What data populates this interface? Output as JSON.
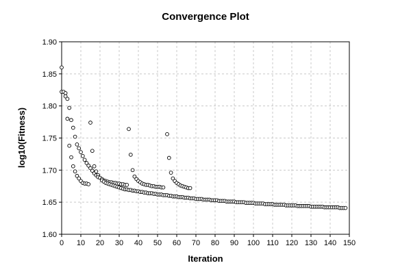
{
  "chart_data": {
    "type": "scatter",
    "title": "Convergence Plot",
    "xlabel": "Iteration",
    "ylabel": "log10(Fitness)",
    "xlim": [
      0,
      150
    ],
    "ylim": [
      1.6,
      1.9
    ],
    "xticks": [
      0,
      10,
      20,
      30,
      40,
      50,
      60,
      70,
      80,
      90,
      100,
      110,
      120,
      130,
      140,
      150
    ],
    "yticks": [
      1.6,
      1.65,
      1.7,
      1.75,
      1.8,
      1.85,
      1.9
    ],
    "ytick_labels": [
      "1.60",
      "1.65",
      "1.70",
      "1.75",
      "1.80",
      "1.85",
      "1.90"
    ],
    "grid": true,
    "marker": "open-circle",
    "points": [
      [
        0,
        1.86
      ],
      [
        0,
        1.822
      ],
      [
        1,
        1.822
      ],
      [
        2,
        1.82
      ],
      [
        2,
        1.815
      ],
      [
        3,
        1.811
      ],
      [
        3,
        1.78
      ],
      [
        4,
        1.797
      ],
      [
        4,
        1.738
      ],
      [
        5,
        1.778
      ],
      [
        5,
        1.72
      ],
      [
        6,
        1.766
      ],
      [
        6,
        1.706
      ],
      [
        7,
        1.752
      ],
      [
        7,
        1.698
      ],
      [
        8,
        1.74
      ],
      [
        8,
        1.691
      ],
      [
        9,
        1.734
      ],
      [
        9,
        1.687
      ],
      [
        10,
        1.728
      ],
      [
        10,
        1.683
      ],
      [
        11,
        1.722
      ],
      [
        11,
        1.68
      ],
      [
        12,
        1.716
      ],
      [
        12,
        1.679
      ],
      [
        13,
        1.711
      ],
      [
        13,
        1.679
      ],
      [
        14,
        1.707
      ],
      [
        14,
        1.678
      ],
      [
        15,
        1.774
      ],
      [
        15,
        1.703
      ],
      [
        16,
        1.73
      ],
      [
        16,
        1.699
      ],
      [
        17,
        1.706
      ],
      [
        17,
        1.695
      ],
      [
        18,
        1.698
      ],
      [
        18,
        1.692
      ],
      [
        19,
        1.692
      ],
      [
        19,
        1.689
      ],
      [
        20,
        1.688
      ],
      [
        21,
        1.686
      ],
      [
        22,
        1.684
      ],
      [
        23,
        1.683
      ],
      [
        24,
        1.682
      ],
      [
        25,
        1.681
      ],
      [
        26,
        1.681
      ],
      [
        27,
        1.68
      ],
      [
        28,
        1.68
      ],
      [
        29,
        1.679
      ],
      [
        30,
        1.679
      ],
      [
        31,
        1.678
      ],
      [
        32,
        1.678
      ],
      [
        33,
        1.677
      ],
      [
        34,
        1.677
      ],
      [
        35,
        1.764
      ],
      [
        36,
        1.724
      ],
      [
        37,
        1.7
      ],
      [
        38,
        1.69
      ],
      [
        39,
        1.686
      ],
      [
        40,
        1.683
      ],
      [
        41,
        1.681
      ],
      [
        42,
        1.679
      ],
      [
        43,
        1.678
      ],
      [
        44,
        1.677
      ],
      [
        45,
        1.677
      ],
      [
        46,
        1.676
      ],
      [
        47,
        1.675
      ],
      [
        48,
        1.675
      ],
      [
        49,
        1.674
      ],
      [
        50,
        1.674
      ],
      [
        51,
        1.674
      ],
      [
        52,
        1.673
      ],
      [
        53,
        1.673
      ],
      [
        55,
        1.756
      ],
      [
        56,
        1.719
      ],
      [
        57,
        1.696
      ],
      [
        58,
        1.687
      ],
      [
        59,
        1.683
      ],
      [
        60,
        1.68
      ],
      [
        61,
        1.678
      ],
      [
        62,
        1.676
      ],
      [
        63,
        1.675
      ],
      [
        64,
        1.674
      ],
      [
        65,
        1.673
      ],
      [
        66,
        1.672
      ],
      [
        67,
        1.672
      ],
      [
        21,
        1.684
      ],
      [
        22,
        1.682
      ],
      [
        23,
        1.68
      ],
      [
        24,
        1.679
      ],
      [
        25,
        1.678
      ],
      [
        26,
        1.677
      ],
      [
        27,
        1.676
      ],
      [
        28,
        1.675
      ],
      [
        29,
        1.674
      ],
      [
        30,
        1.673
      ],
      [
        31,
        1.672
      ],
      [
        32,
        1.671
      ],
      [
        33,
        1.67
      ],
      [
        34,
        1.67
      ],
      [
        35,
        1.669
      ],
      [
        36,
        1.669
      ],
      [
        37,
        1.668
      ],
      [
        38,
        1.668
      ],
      [
        39,
        1.667
      ],
      [
        40,
        1.667
      ],
      [
        41,
        1.666
      ],
      [
        42,
        1.666
      ],
      [
        43,
        1.665
      ],
      [
        44,
        1.665
      ],
      [
        45,
        1.664
      ],
      [
        46,
        1.664
      ],
      [
        47,
        1.664
      ],
      [
        48,
        1.663
      ],
      [
        49,
        1.663
      ],
      [
        50,
        1.662
      ],
      [
        51,
        1.662
      ],
      [
        52,
        1.662
      ],
      [
        53,
        1.661
      ],
      [
        54,
        1.661
      ],
      [
        55,
        1.661
      ],
      [
        56,
        1.66
      ],
      [
        57,
        1.66
      ],
      [
        58,
        1.659
      ],
      [
        59,
        1.659
      ],
      [
        60,
        1.659
      ],
      [
        61,
        1.658
      ],
      [
        62,
        1.658
      ],
      [
        63,
        1.658
      ],
      [
        64,
        1.657
      ],
      [
        65,
        1.657
      ],
      [
        66,
        1.657
      ],
      [
        67,
        1.656
      ],
      [
        68,
        1.656
      ],
      [
        69,
        1.656
      ],
      [
        70,
        1.655
      ],
      [
        71,
        1.655
      ],
      [
        72,
        1.655
      ],
      [
        73,
        1.655
      ],
      [
        74,
        1.654
      ],
      [
        75,
        1.654
      ],
      [
        76,
        1.654
      ],
      [
        77,
        1.654
      ],
      [
        78,
        1.653
      ],
      [
        79,
        1.653
      ],
      [
        80,
        1.653
      ],
      [
        81,
        1.653
      ],
      [
        82,
        1.652
      ],
      [
        83,
        1.652
      ],
      [
        84,
        1.652
      ],
      [
        85,
        1.652
      ],
      [
        86,
        1.651
      ],
      [
        87,
        1.651
      ],
      [
        88,
        1.651
      ],
      [
        89,
        1.651
      ],
      [
        90,
        1.651
      ],
      [
        91,
        1.65
      ],
      [
        92,
        1.65
      ],
      [
        93,
        1.65
      ],
      [
        94,
        1.65
      ],
      [
        95,
        1.65
      ],
      [
        96,
        1.649
      ],
      [
        97,
        1.649
      ],
      [
        98,
        1.649
      ],
      [
        99,
        1.649
      ],
      [
        100,
        1.649
      ],
      [
        101,
        1.648
      ],
      [
        102,
        1.648
      ],
      [
        103,
        1.648
      ],
      [
        104,
        1.648
      ],
      [
        105,
        1.648
      ],
      [
        106,
        1.647
      ],
      [
        107,
        1.647
      ],
      [
        108,
        1.647
      ],
      [
        109,
        1.647
      ],
      [
        110,
        1.647
      ],
      [
        111,
        1.646
      ],
      [
        112,
        1.646
      ],
      [
        113,
        1.646
      ],
      [
        114,
        1.646
      ],
      [
        115,
        1.646
      ],
      [
        116,
        1.646
      ],
      [
        117,
        1.645
      ],
      [
        118,
        1.645
      ],
      [
        119,
        1.645
      ],
      [
        120,
        1.645
      ],
      [
        121,
        1.645
      ],
      [
        122,
        1.645
      ],
      [
        123,
        1.644
      ],
      [
        124,
        1.644
      ],
      [
        125,
        1.644
      ],
      [
        126,
        1.644
      ],
      [
        127,
        1.644
      ],
      [
        128,
        1.644
      ],
      [
        129,
        1.644
      ],
      [
        130,
        1.643
      ],
      [
        131,
        1.643
      ],
      [
        132,
        1.643
      ],
      [
        133,
        1.643
      ],
      [
        134,
        1.643
      ],
      [
        135,
        1.643
      ],
      [
        136,
        1.643
      ],
      [
        137,
        1.642
      ],
      [
        138,
        1.642
      ],
      [
        139,
        1.642
      ],
      [
        140,
        1.642
      ],
      [
        141,
        1.642
      ],
      [
        142,
        1.642
      ],
      [
        143,
        1.642
      ],
      [
        144,
        1.642
      ],
      [
        145,
        1.641
      ],
      [
        146,
        1.641
      ],
      [
        147,
        1.641
      ],
      [
        148,
        1.641
      ]
    ]
  }
}
